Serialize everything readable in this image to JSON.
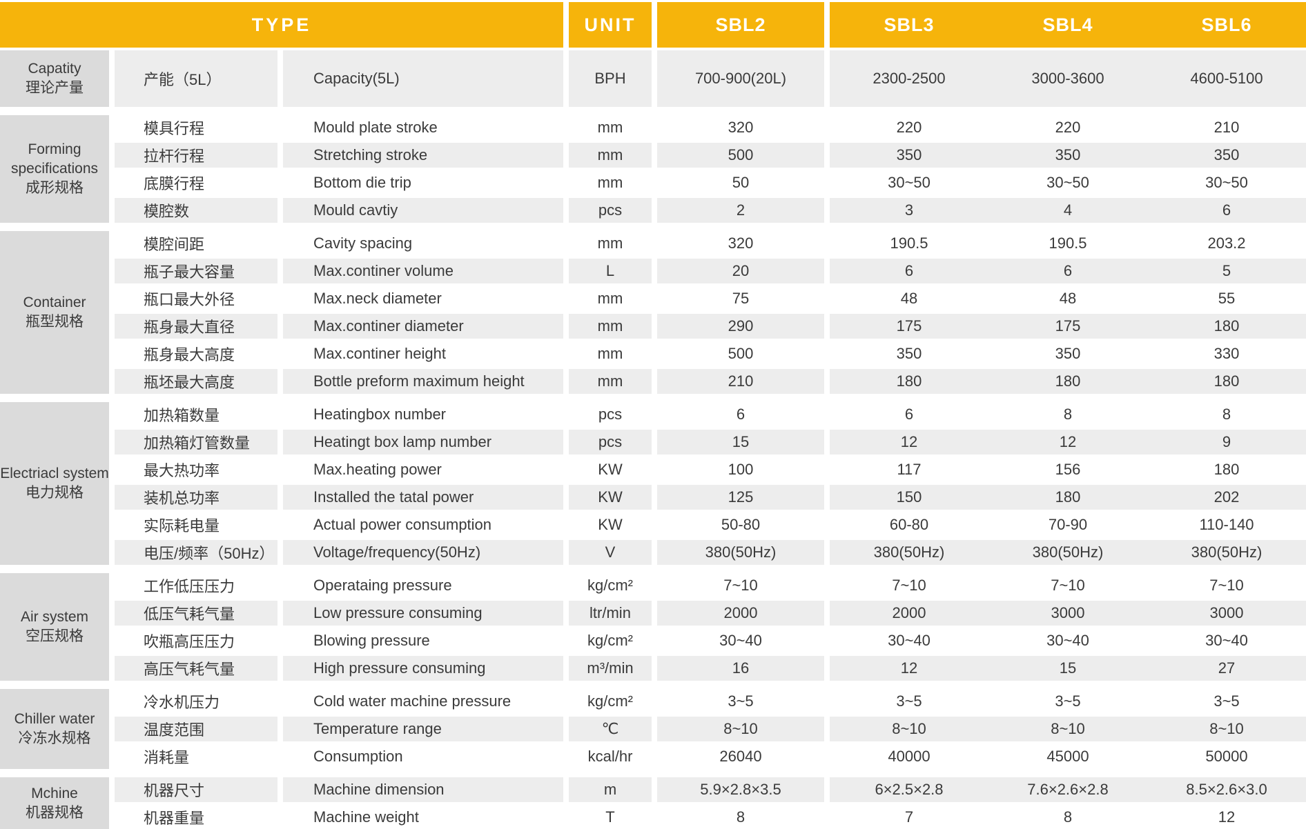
{
  "colors": {
    "header_bg": "#f6b40b",
    "header_text": "#ffffff",
    "row_alt_bg": "#ededed",
    "group_label_bg": "#dbdbdb",
    "body_text": "#3a3a3a"
  },
  "header": {
    "type_label": "TYPE",
    "unit_label": "UNIT",
    "models": [
      "SBL2",
      "SBL3",
      "SBL4",
      "SBL6"
    ]
  },
  "groups": [
    {
      "en": "Capatity",
      "cn": "理论产量",
      "rows": [
        {
          "cn": "产能（5L）",
          "en": "Capacity(5L)",
          "unit": "BPH",
          "values": [
            "700-900(20L)",
            "2300-2500",
            "3000-3600",
            "4600-5100"
          ]
        }
      ]
    },
    {
      "en": "Forming specifications",
      "cn": "成形规格",
      "rows": [
        {
          "cn": "模具行程",
          "en": "Mould plate stroke",
          "unit": "mm",
          "values": [
            "320",
            "220",
            "220",
            "210"
          ]
        },
        {
          "cn": "拉杆行程",
          "en": "Stretching stroke",
          "unit": "mm",
          "values": [
            "500",
            "350",
            "350",
            "350"
          ]
        },
        {
          "cn": "底膜行程",
          "en": "Bottom die trip",
          "unit": "mm",
          "values": [
            "50",
            "30~50",
            "30~50",
            "30~50"
          ]
        },
        {
          "cn": "模腔数",
          "en": "Mould cavtiy",
          "unit": "pcs",
          "values": [
            "2",
            "3",
            "4",
            "6"
          ]
        }
      ]
    },
    {
      "en": "Container",
      "cn": "瓶型规格",
      "rows": [
        {
          "cn": "模腔间距",
          "en": "Cavity spacing",
          "unit": "mm",
          "values": [
            "320",
            "190.5",
            "190.5",
            "203.2"
          ]
        },
        {
          "cn": "瓶子最大容量",
          "en": "Max.continer volume",
          "unit": "L",
          "values": [
            "20",
            "6",
            "6",
            "5"
          ]
        },
        {
          "cn": "瓶口最大外径",
          "en": "Max.neck diameter",
          "unit": "mm",
          "values": [
            "75",
            "48",
            "48",
            "55"
          ]
        },
        {
          "cn": "瓶身最大直径",
          "en": "Max.continer diameter",
          "unit": "mm",
          "values": [
            "290",
            "175",
            "175",
            "180"
          ]
        },
        {
          "cn": "瓶身最大高度",
          "en": "Max.continer height",
          "unit": "mm",
          "values": [
            "500",
            "350",
            "350",
            "330"
          ]
        },
        {
          "cn": "瓶坯最大高度",
          "en": "Bottle preform maximum height",
          "unit": "mm",
          "values": [
            "210",
            "180",
            "180",
            "180"
          ]
        }
      ]
    },
    {
      "en": "Electriacl system",
      "cn": "电力规格",
      "rows": [
        {
          "cn": "加热箱数量",
          "en": "Heatingbox number",
          "unit": "pcs",
          "values": [
            "6",
            "6",
            "8",
            "8"
          ]
        },
        {
          "cn": "加热箱灯管数量",
          "en": "Heatingt box lamp number",
          "unit": "pcs",
          "values": [
            "15",
            "12",
            "12",
            "9"
          ]
        },
        {
          "cn": "最大热功率",
          "en": "Max.heating power",
          "unit": "KW",
          "values": [
            "100",
            "117",
            "156",
            "180"
          ]
        },
        {
          "cn": "装机总功率",
          "en": "Installed the tatal power",
          "unit": "KW",
          "values": [
            "125",
            "150",
            "180",
            "202"
          ]
        },
        {
          "cn": "实际耗电量",
          "en": "Actual power consumption",
          "unit": "KW",
          "values": [
            "50-80",
            "60-80",
            "70-90",
            "110-140"
          ]
        },
        {
          "cn": "电压/频率（50Hz）",
          "en": "Voltage/frequency(50Hz)",
          "unit": "V",
          "values": [
            "380(50Hz)",
            "380(50Hz)",
            "380(50Hz)",
            "380(50Hz)"
          ]
        }
      ]
    },
    {
      "en": "Air system",
      "cn": "空压规格",
      "rows": [
        {
          "cn": "工作低压压力",
          "en": "Operataing pressure",
          "unit": "kg/cm²",
          "values": [
            "7~10",
            "7~10",
            "7~10",
            "7~10"
          ]
        },
        {
          "cn": "低压气耗气量",
          "en": "Low pressure consuming",
          "unit": "ltr/min",
          "values": [
            "2000",
            "2000",
            "3000",
            "3000"
          ]
        },
        {
          "cn": "吹瓶高压压力",
          "en": "Blowing pressure",
          "unit": "kg/cm²",
          "values": [
            "30~40",
            "30~40",
            "30~40",
            "30~40"
          ]
        },
        {
          "cn": "高压气耗气量",
          "en": "High pressure consuming",
          "unit": "m³/min",
          "values": [
            "16",
            "12",
            "15",
            "27"
          ]
        }
      ]
    },
    {
      "en": "Chiller water",
      "cn": "冷冻水规格",
      "rows": [
        {
          "cn": "冷水机压力",
          "en": "Cold water machine pressure",
          "unit": "kg/cm²",
          "values": [
            "3~5",
            "3~5",
            "3~5",
            "3~5"
          ]
        },
        {
          "cn": "温度范围",
          "en": "Temperature range",
          "unit": "℃",
          "values": [
            "8~10",
            "8~10",
            "8~10",
            "8~10"
          ]
        },
        {
          "cn": "消耗量",
          "en": "Consumption",
          "unit": "kcal/hr",
          "values": [
            "26040",
            "40000",
            "45000",
            "50000"
          ]
        }
      ]
    },
    {
      "en": "Mchine",
      "cn": "机器规格",
      "rows": [
        {
          "cn": "机器尺寸",
          "en": "Machine dimension",
          "unit": "m",
          "values": [
            "5.9×2.8×3.5",
            "6×2.5×2.8",
            "7.6×2.6×2.8",
            "8.5×2.6×3.0"
          ]
        },
        {
          "cn": "机器重量",
          "en": "Machine weight",
          "unit": "T",
          "values": [
            "8",
            "7",
            "8",
            "12"
          ]
        }
      ]
    }
  ]
}
